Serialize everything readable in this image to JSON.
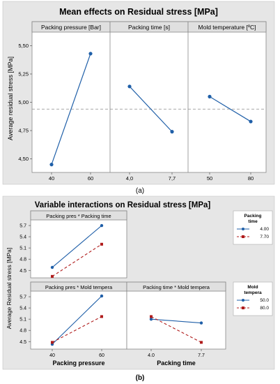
{
  "figure_a": {
    "title": "Mean effects on Residual stress [MPa]",
    "ylabel": "Average residual stress [MPa]",
    "caption": "(a)",
    "reference_line": 4.94,
    "ylim": [
      4.38,
      5.62
    ],
    "yticks": [
      "4,50",
      "4,75",
      "5,00",
      "5,25",
      "5,50"
    ],
    "ytick_values": [
      4.5,
      4.75,
      5.0,
      5.25,
      5.5
    ],
    "panels": [
      {
        "header": "Packing pressure [Bar]",
        "xticks": [
          "40",
          "60"
        ]
      },
      {
        "header": "Packing time [s]",
        "xticks": [
          "4,0",
          "7,7"
        ]
      },
      {
        "header": "Mold temperature [ºC]",
        "xticks": [
          "50",
          "80"
        ]
      }
    ]
  },
  "figure_b": {
    "title": "Variable interactions on Residual stress [MPa]",
    "ylabel": "Average Residual stress [MPa]",
    "caption": "(b)",
    "ylim": [
      4.3,
      5.85
    ],
    "yticks": [
      "4.5",
      "4.8",
      "5.1",
      "5.4",
      "5.7"
    ],
    "ytick_values": [
      4.5,
      4.8,
      5.1,
      5.4,
      5.7
    ],
    "xlabels": [
      "Packing pressure",
      "Packing time"
    ],
    "xticks_pressure": [
      "40",
      "60"
    ],
    "xticks_time": [
      "4.0",
      "7.7"
    ],
    "panels": [
      {
        "header": "Packing pres * Packing time"
      },
      {
        "header": "Packing pres * Mold tempera"
      },
      {
        "header": "Packing time * Mold tempera"
      }
    ],
    "legends": [
      {
        "title_lines": [
          "Packing",
          "time"
        ],
        "entries": [
          "4.00",
          "7.70"
        ]
      },
      {
        "title_lines": [
          "Mold",
          "tempera"
        ],
        "entries": [
          "50.0",
          "80.0"
        ]
      }
    ]
  },
  "colors": {
    "series_solid": "#1f5fa8",
    "series_dashed": "#b01c1c",
    "plot_background": "#e6e6e6",
    "header_background": "#e0e0e0",
    "frame": "#888888",
    "reference_line": "#8c8c8c"
  },
  "chart_data": [
    {
      "type": "line",
      "title": "Mean effects on Residual stress [MPa]",
      "ylabel": "Average residual stress [MPa]",
      "ylim": [
        4.38,
        5.62
      ],
      "reference_line": 4.94,
      "grid": false,
      "panels": [
        {
          "name": "Packing pressure [Bar]",
          "x": [
            "40",
            "60"
          ],
          "y": [
            4.45,
            5.43
          ]
        },
        {
          "name": "Packing time [s]",
          "x": [
            "4,0",
            "7,7"
          ],
          "y": [
            5.14,
            4.74
          ]
        },
        {
          "name": "Mold temperature [ºC]",
          "x": [
            "50",
            "80"
          ],
          "y": [
            5.05,
            4.83
          ]
        }
      ]
    },
    {
      "type": "line",
      "title": "Variable interactions on Residual stress [MPa]",
      "ylabel": "Average Residual stress [MPa]",
      "ylim": [
        4.3,
        5.85
      ],
      "grid": false,
      "legend": "right",
      "panels": [
        {
          "name": "Packing pres * Packing time",
          "x": [
            "40",
            "60"
          ],
          "xlabel": "",
          "series": [
            {
              "name": "4.00",
              "values": [
                4.58,
                5.7
              ]
            },
            {
              "name": "7.70",
              "values": [
                4.34,
                5.2
              ]
            }
          ]
        },
        {
          "name": "Packing pres * Mold tempera",
          "x": [
            "40",
            "60"
          ],
          "xlabel": "Packing pressure",
          "series": [
            {
              "name": "50.0",
              "values": [
                4.43,
                5.72
              ]
            },
            {
              "name": "80.0",
              "values": [
                4.48,
                5.17
              ]
            }
          ]
        },
        {
          "name": "Packing time * Mold tempera",
          "x": [
            "4.0",
            "7.7"
          ],
          "xlabel": "Packing time",
          "series": [
            {
              "name": "50.0",
              "values": [
                5.1,
                5.0
              ]
            },
            {
              "name": "80.0",
              "values": [
                5.17,
                4.48
              ]
            }
          ]
        }
      ]
    }
  ]
}
